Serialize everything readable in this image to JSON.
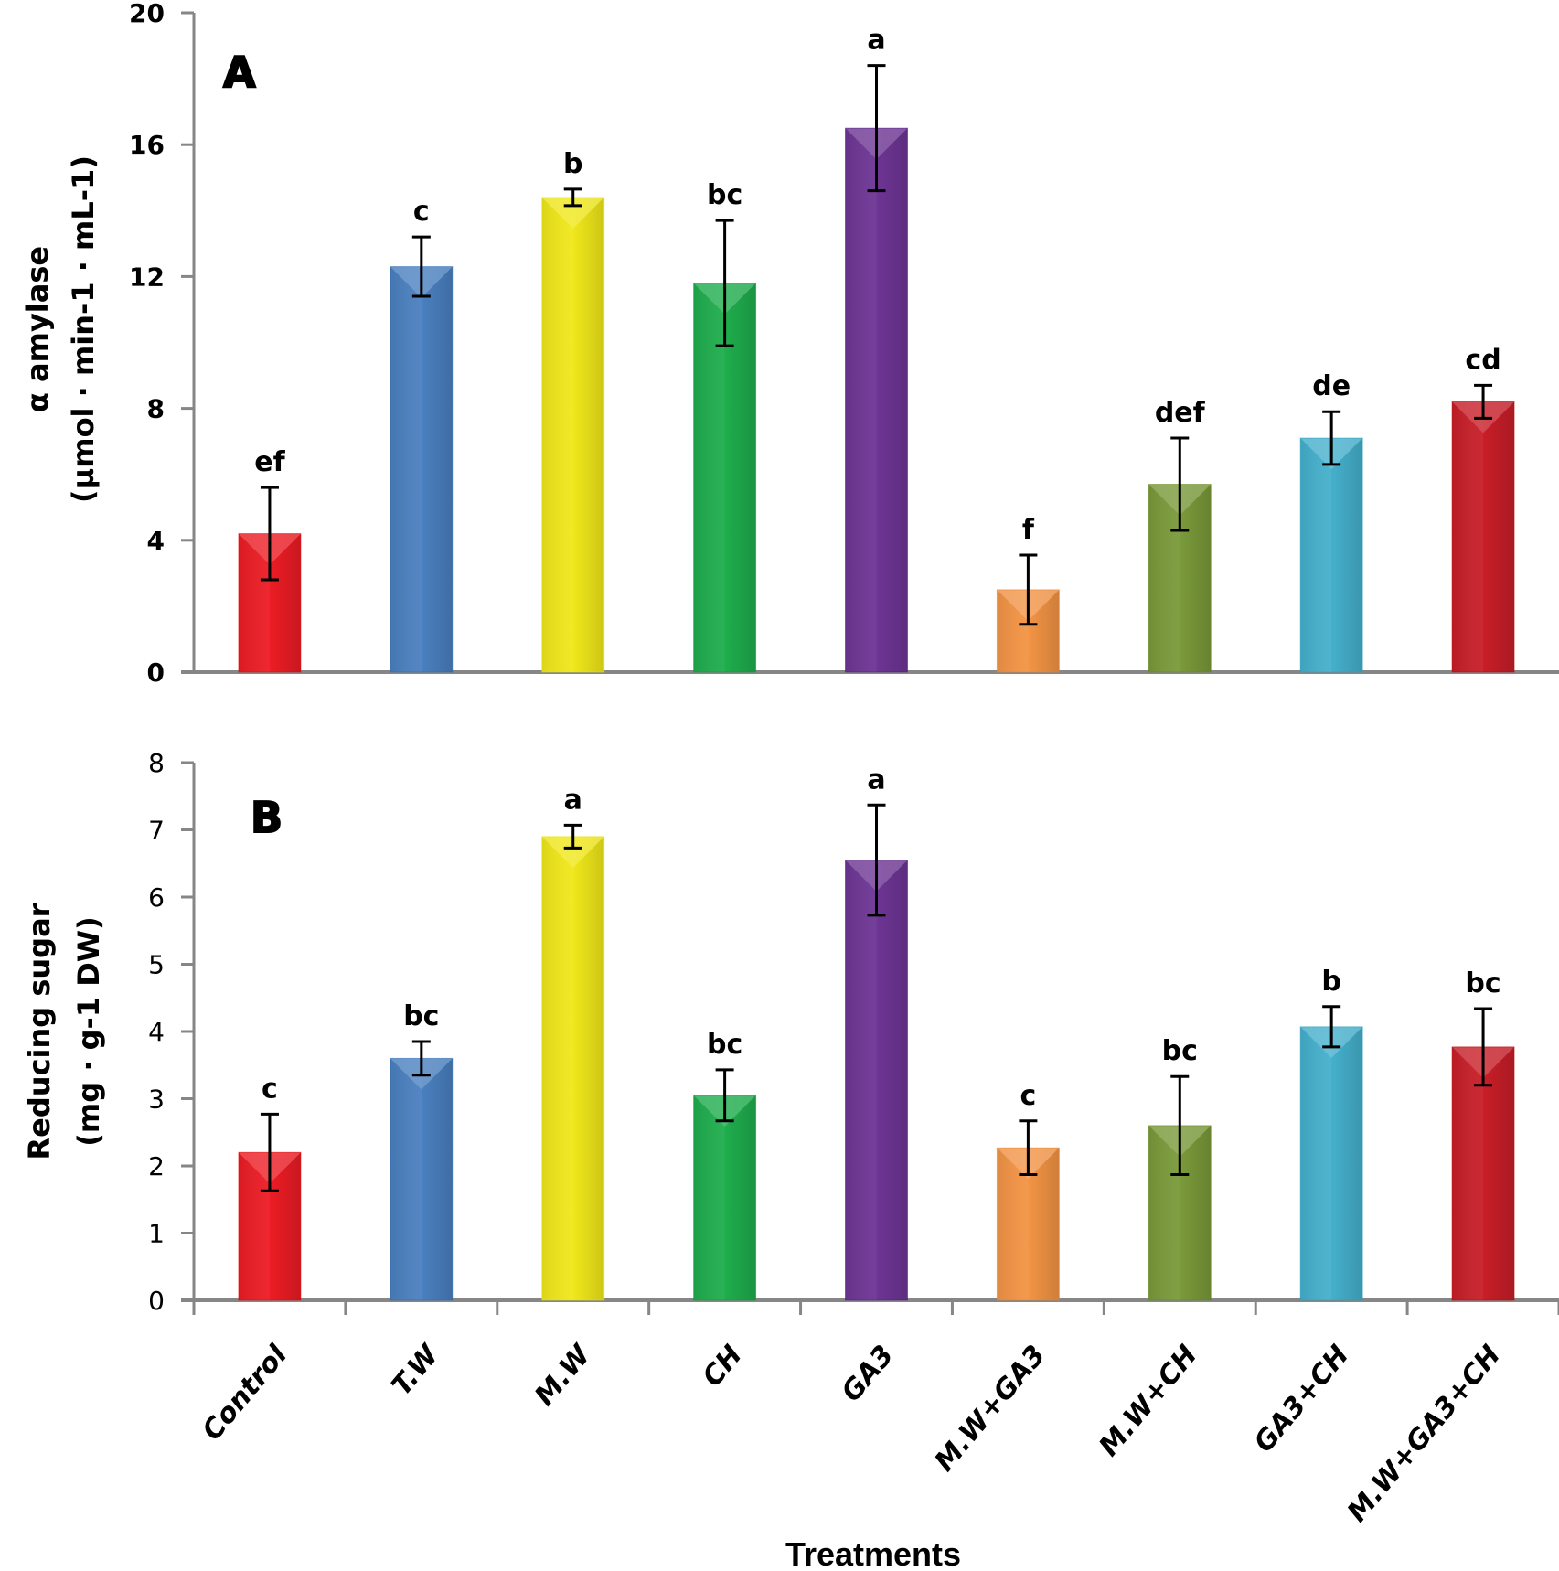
{
  "chart_data": [
    {
      "type": "bar",
      "panel": "A",
      "title": "",
      "xlabel": "",
      "ylabel_line1": "α amylase",
      "ylabel_line2": "(µmol · min-1 · mL-1)",
      "ylim": [
        0,
        20
      ],
      "yticks": [
        0,
        4,
        8,
        12,
        16,
        20
      ],
      "grid": false,
      "legend": "none",
      "categories": [
        "Control",
        "T.W",
        "M.W",
        "CH",
        "GA3",
        "M.W+GA3",
        "M.W+CH",
        "GA3+CH",
        "M.W+GA3+CH"
      ],
      "values": [
        4.2,
        12.3,
        14.4,
        11.8,
        16.5,
        2.5,
        5.7,
        7.1,
        8.2
      ],
      "errors": [
        1.4,
        0.9,
        0.25,
        1.9,
        1.9,
        1.05,
        1.4,
        0.8,
        0.5
      ],
      "significance": [
        "ef",
        "c",
        "b",
        "bc",
        "a",
        "f",
        "def",
        "de",
        "cd"
      ]
    },
    {
      "type": "bar",
      "panel": "B",
      "title": "",
      "xlabel": "Treatments",
      "ylabel_line1": "Reducing sugar",
      "ylabel_line2": "(mg · g-1 DW)",
      "ylim": [
        0,
        8
      ],
      "yticks": [
        0,
        1,
        2,
        3,
        4,
        5,
        6,
        7,
        8
      ],
      "grid": false,
      "legend": "none",
      "categories": [
        "Control",
        "T.W",
        "M.W",
        "CH",
        "GA3",
        "M.W+GA3",
        "M.W+CH",
        "GA3+CH",
        "M.W+GA3+CH"
      ],
      "values": [
        2.2,
        3.6,
        6.9,
        3.05,
        6.55,
        2.27,
        2.6,
        4.07,
        3.77
      ],
      "errors": [
        0.57,
        0.25,
        0.17,
        0.38,
        0.82,
        0.4,
        0.73,
        0.3,
        0.57
      ],
      "significance": [
        "c",
        "bc",
        "a",
        "bc",
        "a",
        "c",
        "bc",
        "b",
        "bc"
      ]
    }
  ],
  "bar_colors": [
    "#ec1c24",
    "#4a80c0",
    "#f0e81a",
    "#1fad4d",
    "#6d3594",
    "#f39445",
    "#7a9a3a",
    "#45b0cc",
    "#c81e28"
  ],
  "axis_color": "#868686"
}
